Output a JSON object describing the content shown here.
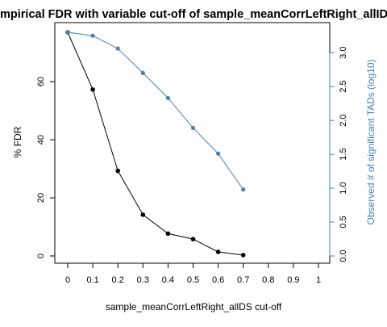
{
  "chart_data": {
    "type": "line",
    "title": "mpirical FDR with variable cut-off of sample_meanCorrLeftRight_allID",
    "xlabel": "sample_meanCorrLeftRight_allDS cut-off",
    "ylabel": "% FDR",
    "y2label": "Observed # of significant TADs (log10)",
    "x_ticks": [
      "0",
      "0.1",
      "0.2",
      "0.3",
      "0.4",
      "0.5",
      "0.6",
      "0.7",
      "0.8",
      "0.9",
      "1"
    ],
    "y_ticks": [
      "0",
      "20",
      "40",
      "60"
    ],
    "y2_ticks": [
      "0.0",
      "0.5",
      "1.0",
      "1.5",
      "2.0",
      "2.5",
      "3.0"
    ],
    "xlim": [
      0,
      1
    ],
    "ylim": [
      0,
      77
    ],
    "y2lim": [
      0,
      3.3
    ],
    "series": [
      {
        "axis": "left",
        "color": "#000000",
        "x": [
          0,
          0.1,
          0.2,
          0.3,
          0.4,
          0.5,
          0.6,
          0.7
        ],
        "values": [
          77,
          57.3,
          29.3,
          14.2,
          7.7,
          5.8,
          1.4,
          0.3
        ]
      },
      {
        "axis": "right",
        "color": "#4682b4",
        "x": [
          0,
          0.1,
          0.2,
          0.3,
          0.4,
          0.5,
          0.6,
          0.7
        ],
        "values": [
          3.3,
          3.25,
          3.06,
          2.7,
          2.33,
          1.89,
          1.51,
          0.98
        ]
      }
    ],
    "grid": false,
    "legend": "none"
  }
}
